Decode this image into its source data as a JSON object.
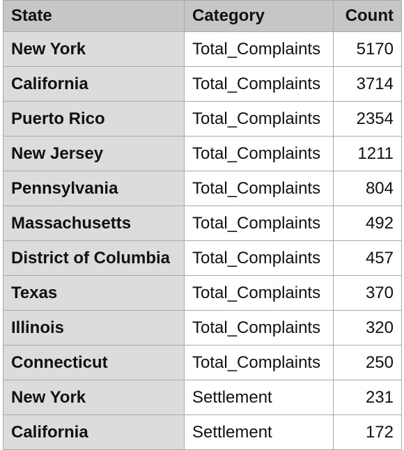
{
  "table": {
    "headers": [
      "State",
      "Category",
      "Count"
    ],
    "rows": [
      [
        "New York",
        "Total_Complaints",
        "5170"
      ],
      [
        "California",
        "Total_Complaints",
        "3714"
      ],
      [
        "Puerto Rico",
        "Total_Complaints",
        "2354"
      ],
      [
        "New Jersey",
        "Total_Complaints",
        "1211"
      ],
      [
        "Pennsylvania",
        "Total_Complaints",
        "804"
      ],
      [
        "Massachusetts",
        "Total_Complaints",
        "492"
      ],
      [
        "District of Columbia",
        "Total_Complaints",
        "457"
      ],
      [
        "Texas",
        "Total_Complaints",
        "370"
      ],
      [
        "Illinois",
        "Total_Complaints",
        "320"
      ],
      [
        "Connecticut",
        "Total_Complaints",
        "250"
      ],
      [
        "New York",
        "Settlement",
        "231"
      ],
      [
        "California",
        "Settlement",
        "172"
      ]
    ]
  }
}
